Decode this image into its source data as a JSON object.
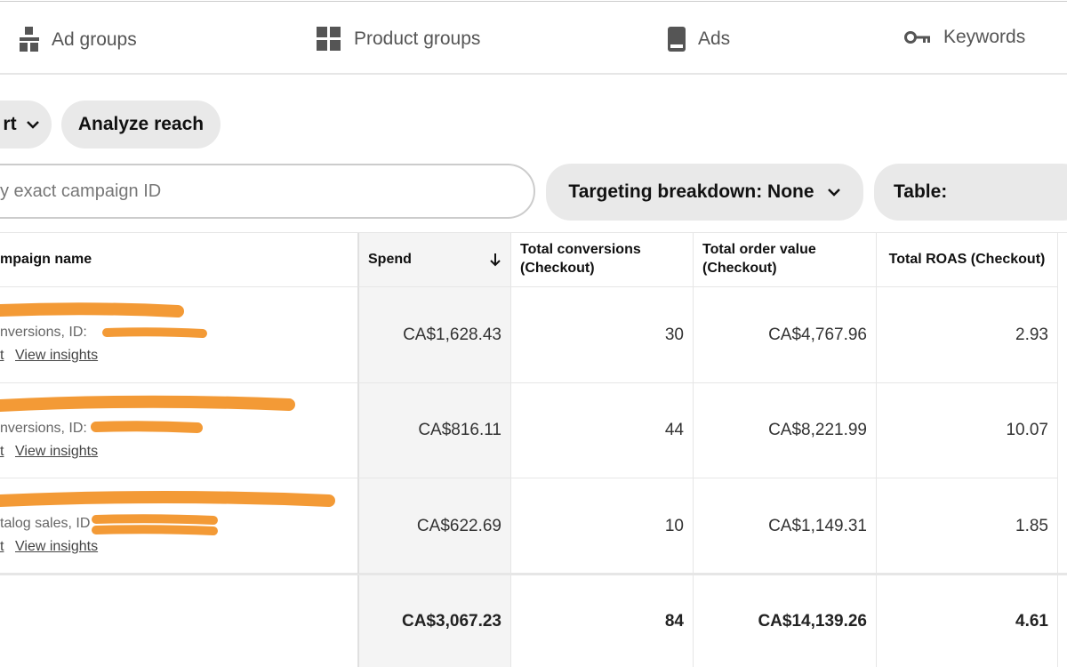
{
  "tabs": [
    "Ad groups",
    "Product groups",
    "Ads",
    "Keywords"
  ],
  "buttons": [
    "rt",
    "Analyze reach"
  ],
  "search": {
    "placeholder": "y exact campaign ID"
  },
  "dropdowns": [
    "Targeting breakdown: None",
    "Table:"
  ],
  "table": {
    "headers": [
      "mpaign name",
      "Spend",
      "Total conversions (Checkout)",
      "Total order value (Checkout)",
      "Total ROAS (Checkout)"
    ],
    "rows": [
      {
        "detail": "nversions, ID:",
        "links": [
          "t",
          "View insights"
        ],
        "cells": [
          "CA$1,628.43",
          "30",
          "CA$4,767.96",
          "2.93"
        ]
      },
      {
        "detail": "nversions, ID:",
        "links": [
          "t",
          "View insights"
        ],
        "cells": [
          "CA$816.11",
          "44",
          "CA$8,221.99",
          "10.07"
        ]
      },
      {
        "detail": "talog sales, ID",
        "links": [
          "t",
          "View insights"
        ],
        "cells": [
          "CA$622.69",
          "10",
          "CA$1,149.31",
          "1.85"
        ]
      }
    ],
    "totals": [
      "CA$3,067.23",
      "84",
      "CA$14,139.26",
      "4.61"
    ]
  }
}
